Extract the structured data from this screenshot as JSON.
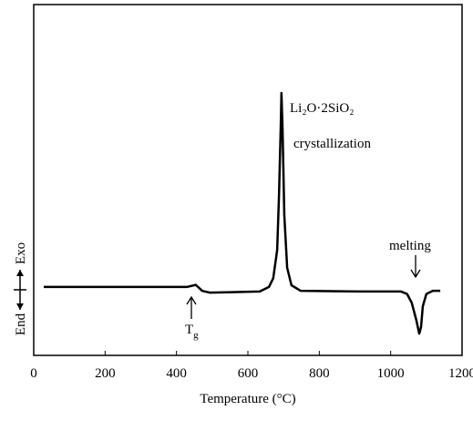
{
  "chart_data": {
    "type": "line",
    "x_label": "Temperature (°C)",
    "y_label_low": "End",
    "y_label_high": "Exo",
    "annotations": {
      "crystallization_formula": "Li₂O·2SiO₂",
      "crystallization": "crystallization",
      "melting": "melting",
      "tg_main": "T",
      "tg_sub": "g"
    },
    "x": [
      28,
      429,
      454,
      472,
      493,
      633,
      659,
      671,
      682,
      687,
      692,
      694,
      697,
      702,
      710,
      722,
      748,
      927,
      1029,
      1046,
      1059,
      1072,
      1080,
      1085,
      1090,
      1100,
      1118,
      1139
    ],
    "series": [
      {
        "color": "#000000",
        "values": [
          19.5,
          19.5,
          20.1,
          18.4,
          17.9,
          18.2,
          19.5,
          22,
          30,
          45,
          65,
          74.8,
          65,
          40,
          25,
          20,
          18.4,
          18.2,
          18.2,
          17.5,
          15,
          10,
          6.2,
          8,
          14,
          17.5,
          18.4,
          18.4
        ]
      }
    ],
    "xlim": [
      0,
      1200
    ],
    "xticks": [
      0,
      200,
      400,
      600,
      800,
      1000,
      1200
    ],
    "ylim": [
      0,
      100
    ]
  }
}
